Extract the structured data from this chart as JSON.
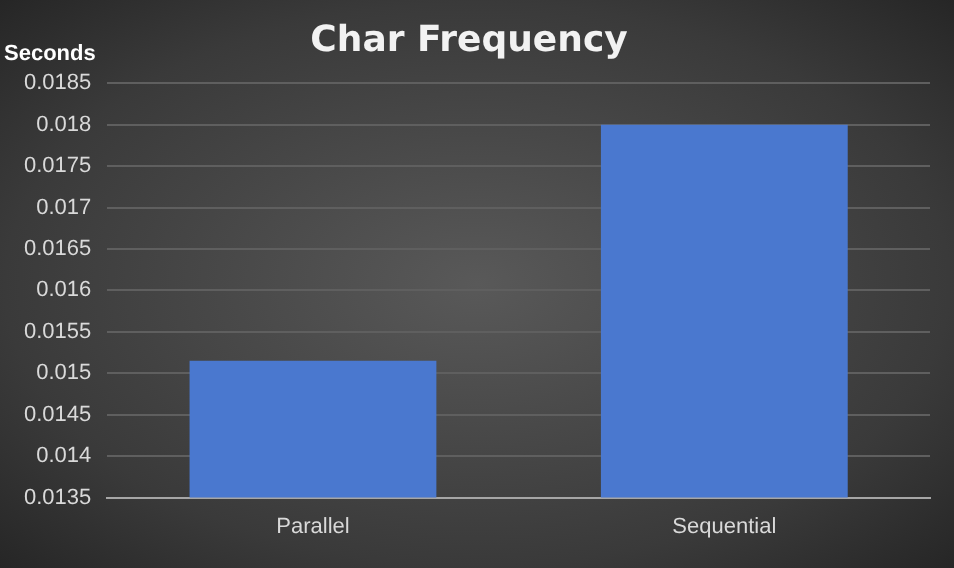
{
  "chart_data": {
    "type": "bar",
    "title": "Char Frequency",
    "ylabel": "Seconds",
    "categories": [
      "Parallel",
      "Sequential"
    ],
    "values": [
      0.01515,
      0.018
    ],
    "color": "#4a78cf",
    "ylim": [
      0.0135,
      0.0185
    ],
    "yticks": [
      0.0135,
      0.014,
      0.0145,
      0.015,
      0.0155,
      0.016,
      0.0165,
      0.017,
      0.0175,
      0.018,
      0.0185
    ],
    "grid": "y",
    "legend": false
  }
}
